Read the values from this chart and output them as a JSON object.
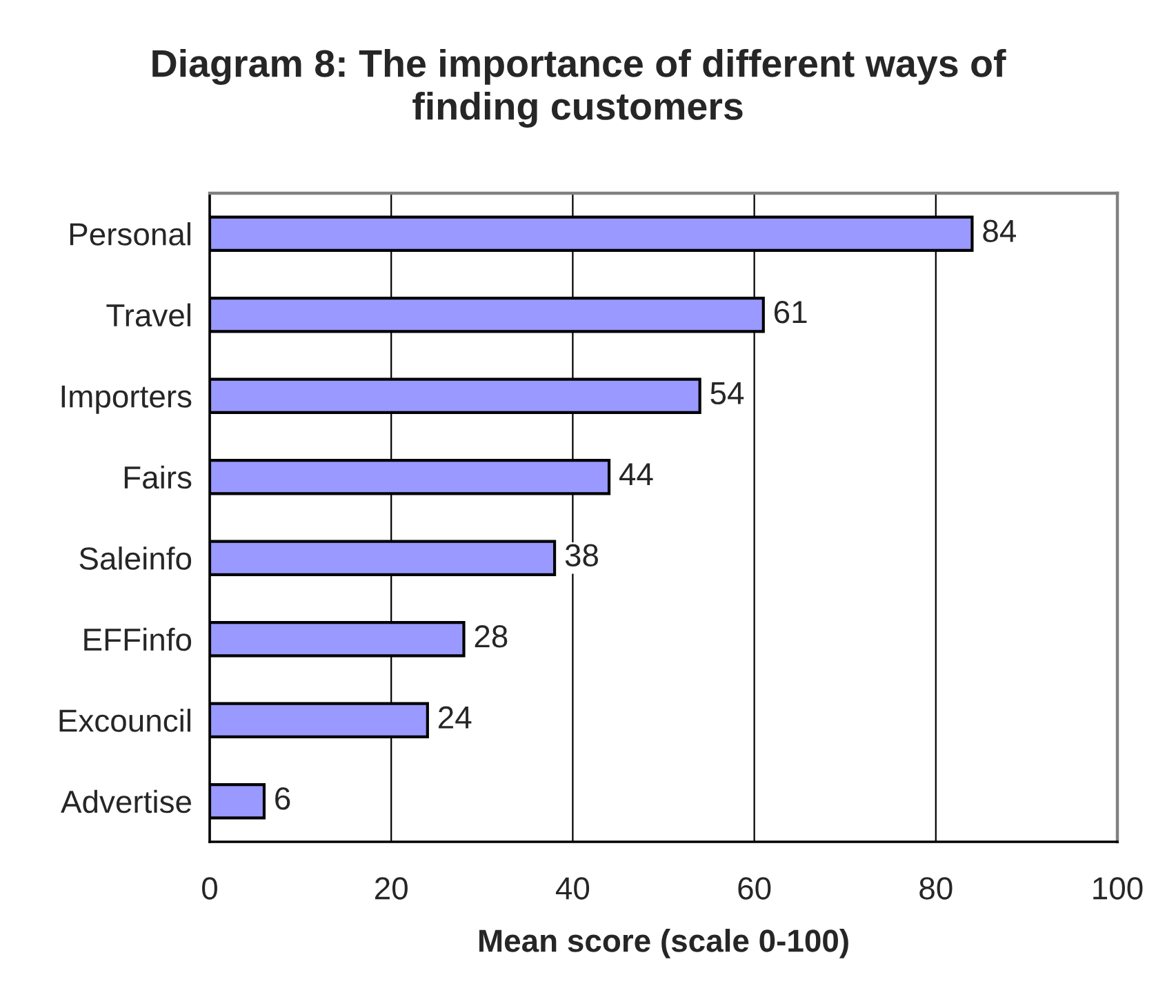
{
  "chart_data": {
    "type": "bar",
    "orientation": "horizontal",
    "title": "Diagram 8: The importance of different ways of\nfinding customers",
    "xlabel": "Mean score (scale 0-100)",
    "categories": [
      "Personal",
      "Travel",
      "Importers",
      "Fairs",
      "Saleinfo",
      "EFFinfo",
      "Excouncil",
      "Advertise"
    ],
    "values": [
      84,
      61,
      54,
      44,
      38,
      28,
      24,
      6
    ],
    "color": "#9999ff",
    "xlim": [
      0,
      100
    ],
    "xticks": [
      0,
      20,
      40,
      60,
      80,
      100
    ],
    "grid": "x",
    "data_labels": true
  }
}
